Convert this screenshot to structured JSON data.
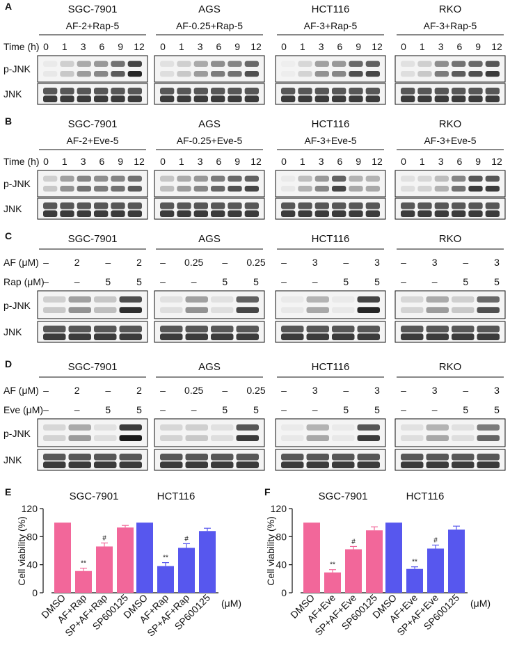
{
  "panels": {
    "A": {
      "letter": "A",
      "time_label": "Time (h)",
      "time_points": [
        "0",
        "1",
        "3",
        "6",
        "9",
        "12"
      ],
      "row_labels": [
        "p-JNK",
        "JNK"
      ],
      "groups": [
        {
          "cell": "SGC-7901",
          "treatment": "AF-2+Rap-5"
        },
        {
          "cell": "AGS",
          "treatment": "AF-0.25+Rap-5"
        },
        {
          "cell": "HCT116",
          "treatment": "AF-3+Rap-5"
        },
        {
          "cell": "RKO",
          "treatment": "AF-3+Rap-5"
        }
      ]
    },
    "B": {
      "letter": "B",
      "time_label": "Time (h)",
      "time_points": [
        "0",
        "1",
        "3",
        "6",
        "9",
        "12"
      ],
      "row_labels": [
        "p-JNK",
        "JNK"
      ],
      "groups": [
        {
          "cell": "SGC-7901",
          "treatment": "AF-2+Eve-5"
        },
        {
          "cell": "AGS",
          "treatment": "AF-0.25+Eve-5"
        },
        {
          "cell": "HCT116",
          "treatment": "AF-3+Eve-5"
        },
        {
          "cell": "RKO",
          "treatment": "AF-3+Eve-5"
        }
      ]
    },
    "C": {
      "letter": "C",
      "row1_label": "AF (μM)",
      "row2_label": "Rap (μM)",
      "row_labels": [
        "p-JNK",
        "JNK"
      ],
      "groups": [
        {
          "cell": "SGC-7901",
          "row1": [
            "–",
            "2",
            "–",
            "2"
          ],
          "row2": [
            "–",
            "–",
            "5",
            "5"
          ]
        },
        {
          "cell": "AGS",
          "row1": [
            "–",
            "0.25",
            "–",
            "0.25"
          ],
          "row2": [
            "–",
            "–",
            "5",
            "5"
          ]
        },
        {
          "cell": "HCT116",
          "row1": [
            "–",
            "3",
            "–",
            "3"
          ],
          "row2": [
            "–",
            "–",
            "5",
            "5"
          ]
        },
        {
          "cell": "RKO",
          "row1": [
            "–",
            "3",
            "–",
            "3"
          ],
          "row2": [
            "–",
            "–",
            "5",
            "5"
          ]
        }
      ]
    },
    "D": {
      "letter": "D",
      "row1_label": "AF (μM)",
      "row2_label": "Eve (μM)",
      "row_labels": [
        "p-JNK",
        "JNK"
      ],
      "groups": [
        {
          "cell": "SGC-7901",
          "row1": [
            "–",
            "2",
            "–",
            "2"
          ],
          "row2": [
            "–",
            "–",
            "5",
            "5"
          ]
        },
        {
          "cell": "AGS",
          "row1": [
            "–",
            "0.25",
            "–",
            "0.25"
          ],
          "row2": [
            "–",
            "–",
            "5",
            "5"
          ]
        },
        {
          "cell": "HCT116",
          "row1": [
            "–",
            "3",
            "–",
            "3"
          ],
          "row2": [
            "–",
            "–",
            "5",
            "5"
          ]
        },
        {
          "cell": "RKO",
          "row1": [
            "–",
            "3",
            "–",
            "3"
          ],
          "row2": [
            "–",
            "–",
            "5",
            "5"
          ]
        }
      ]
    }
  },
  "colors": {
    "pink": "#f2679a",
    "blue": "#5757ee",
    "band": "#1a1a1a"
  },
  "chart_data": [
    {
      "type": "bar",
      "panel": "E",
      "ylabel": "Cell viability (%)",
      "unit": "(μM)",
      "ylim": [
        0,
        120
      ],
      "yticks": [
        0,
        40,
        80,
        120
      ],
      "categories": [
        "DMSO",
        "AF+Rap",
        "SP+AF+Rap",
        "SP600125"
      ],
      "series": [
        {
          "name": "SGC-7901",
          "color": "#f2679a",
          "values": [
            100,
            31,
            66,
            93
          ],
          "errors": [
            0,
            4,
            5,
            3
          ],
          "marks": [
            "",
            "**",
            "#",
            ""
          ]
        },
        {
          "name": "HCT116",
          "color": "#5757ee",
          "values": [
            100,
            38,
            64,
            88
          ],
          "errors": [
            0,
            5,
            6,
            4
          ],
          "marks": [
            "",
            "**",
            "#",
            ""
          ]
        }
      ]
    },
    {
      "type": "bar",
      "panel": "F",
      "ylabel": "Cell viability (%)",
      "unit": "(μM)",
      "ylim": [
        0,
        120
      ],
      "yticks": [
        0,
        40,
        80,
        120
      ],
      "categories": [
        "DMSO",
        "AF+Eve",
        "SP+AF+Eve",
        "SP600125"
      ],
      "series": [
        {
          "name": "SGC-7901",
          "color": "#f2679a",
          "values": [
            100,
            29,
            62,
            89
          ],
          "errors": [
            0,
            4,
            4,
            5
          ],
          "marks": [
            "",
            "**",
            "#",
            ""
          ]
        },
        {
          "name": "HCT116",
          "color": "#5757ee",
          "values": [
            100,
            34,
            63,
            90
          ],
          "errors": [
            0,
            3,
            5,
            5
          ],
          "marks": [
            "",
            "**",
            "#",
            ""
          ]
        }
      ]
    }
  ]
}
